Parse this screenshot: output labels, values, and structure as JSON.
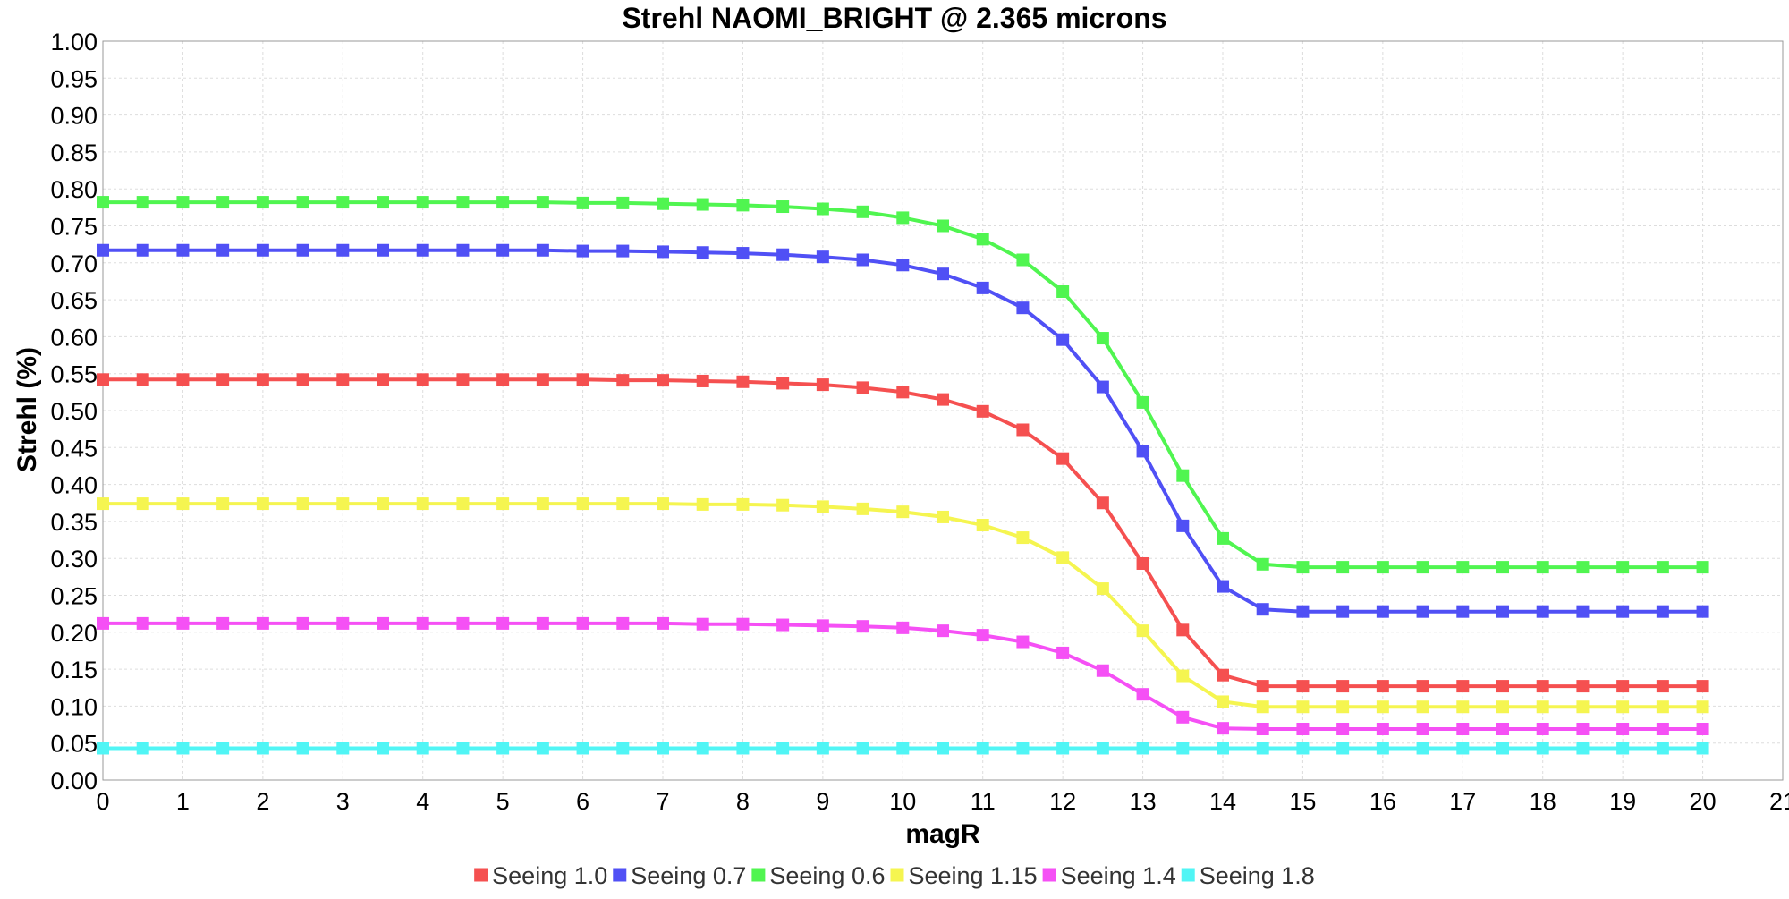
{
  "chart_data": {
    "type": "line",
    "title": "Strehl NAOMI_BRIGHT @ 2.365 microns",
    "xlabel": "magR",
    "ylabel": "Strehl (%)",
    "xlim": [
      0,
      21
    ],
    "ylim": [
      0,
      1
    ],
    "x_ticks": [
      0,
      1,
      2,
      3,
      4,
      5,
      6,
      7,
      8,
      9,
      10,
      11,
      12,
      13,
      14,
      15,
      16,
      17,
      18,
      19,
      20,
      21
    ],
    "y_ticks": [
      0.0,
      0.05,
      0.1,
      0.15,
      0.2,
      0.25,
      0.3,
      0.35,
      0.4,
      0.45,
      0.5,
      0.55,
      0.6,
      0.65,
      0.7,
      0.75,
      0.8,
      0.85,
      0.9,
      0.95,
      1.0
    ],
    "y_tick_labels": [
      "0.00",
      "0.05",
      "0.10",
      "0.15",
      "0.20",
      "0.25",
      "0.30",
      "0.35",
      "0.40",
      "0.45",
      "0.50",
      "0.55",
      "0.60",
      "0.65",
      "0.70",
      "0.75",
      "0.80",
      "0.85",
      "0.90",
      "0.95",
      "1.00"
    ],
    "grid": true,
    "legend_position": "bottom",
    "marker": "square",
    "x": [
      0,
      0.5,
      1,
      1.5,
      2,
      2.5,
      3,
      3.5,
      4,
      4.5,
      5,
      5.5,
      6,
      6.5,
      7,
      7.5,
      8,
      8.5,
      9,
      9.5,
      10,
      10.5,
      11,
      11.5,
      12,
      12.5,
      13,
      13.5,
      14,
      14.5,
      15,
      15.5,
      16,
      16.5,
      17,
      17.5,
      18,
      18.5,
      19,
      19.5,
      20
    ],
    "series": [
      {
        "name": "Seeing 1.0",
        "color": "#f55050",
        "values": [
          0.542,
          0.542,
          0.542,
          0.542,
          0.542,
          0.542,
          0.542,
          0.542,
          0.542,
          0.542,
          0.542,
          0.542,
          0.542,
          0.541,
          0.541,
          0.54,
          0.539,
          0.537,
          0.535,
          0.531,
          0.525,
          0.515,
          0.499,
          0.474,
          0.435,
          0.375,
          0.293,
          0.203,
          0.142,
          0.127,
          0.127,
          0.127,
          0.127,
          0.127,
          0.127,
          0.127,
          0.127,
          0.127,
          0.127,
          0.127,
          0.127
        ]
      },
      {
        "name": "Seeing 0.7",
        "color": "#5050f5",
        "values": [
          0.717,
          0.717,
          0.717,
          0.717,
          0.717,
          0.717,
          0.717,
          0.717,
          0.717,
          0.717,
          0.717,
          0.717,
          0.716,
          0.716,
          0.715,
          0.714,
          0.713,
          0.711,
          0.708,
          0.704,
          0.697,
          0.685,
          0.666,
          0.639,
          0.596,
          0.532,
          0.445,
          0.344,
          0.262,
          0.231,
          0.228,
          0.228,
          0.228,
          0.228,
          0.228,
          0.228,
          0.228,
          0.228,
          0.228,
          0.228,
          0.228
        ]
      },
      {
        "name": "Seeing 0.6",
        "color": "#50f550",
        "values": [
          0.782,
          0.782,
          0.782,
          0.782,
          0.782,
          0.782,
          0.782,
          0.782,
          0.782,
          0.782,
          0.782,
          0.782,
          0.781,
          0.781,
          0.78,
          0.779,
          0.778,
          0.776,
          0.773,
          0.769,
          0.761,
          0.75,
          0.732,
          0.704,
          0.661,
          0.598,
          0.511,
          0.412,
          0.327,
          0.292,
          0.288,
          0.288,
          0.288,
          0.288,
          0.288,
          0.288,
          0.288,
          0.288,
          0.288,
          0.288,
          0.288
        ]
      },
      {
        "name": "Seeing 1.15",
        "color": "#f5f550",
        "values": [
          0.374,
          0.374,
          0.374,
          0.374,
          0.374,
          0.374,
          0.374,
          0.374,
          0.374,
          0.374,
          0.374,
          0.374,
          0.374,
          0.374,
          0.374,
          0.373,
          0.373,
          0.372,
          0.37,
          0.367,
          0.363,
          0.356,
          0.345,
          0.328,
          0.301,
          0.259,
          0.202,
          0.141,
          0.106,
          0.099,
          0.099,
          0.099,
          0.099,
          0.099,
          0.099,
          0.099,
          0.099,
          0.099,
          0.099,
          0.099,
          0.099
        ]
      },
      {
        "name": "Seeing 1.4",
        "color": "#f550f5",
        "values": [
          0.212,
          0.212,
          0.212,
          0.212,
          0.212,
          0.212,
          0.212,
          0.212,
          0.212,
          0.212,
          0.212,
          0.212,
          0.212,
          0.212,
          0.212,
          0.211,
          0.211,
          0.21,
          0.209,
          0.208,
          0.206,
          0.202,
          0.196,
          0.187,
          0.172,
          0.148,
          0.116,
          0.085,
          0.07,
          0.069,
          0.069,
          0.069,
          0.069,
          0.069,
          0.069,
          0.069,
          0.069,
          0.069,
          0.069,
          0.069,
          0.069
        ]
      },
      {
        "name": "Seeing 1.8",
        "color": "#50f5f5",
        "values": [
          0.043,
          0.043,
          0.043,
          0.043,
          0.043,
          0.043,
          0.043,
          0.043,
          0.043,
          0.043,
          0.043,
          0.043,
          0.043,
          0.043,
          0.043,
          0.043,
          0.043,
          0.043,
          0.043,
          0.043,
          0.043,
          0.043,
          0.043,
          0.043,
          0.043,
          0.043,
          0.043,
          0.043,
          0.043,
          0.043,
          0.043,
          0.043,
          0.043,
          0.043,
          0.043,
          0.043,
          0.043,
          0.043,
          0.043,
          0.043,
          0.043
        ]
      }
    ]
  }
}
